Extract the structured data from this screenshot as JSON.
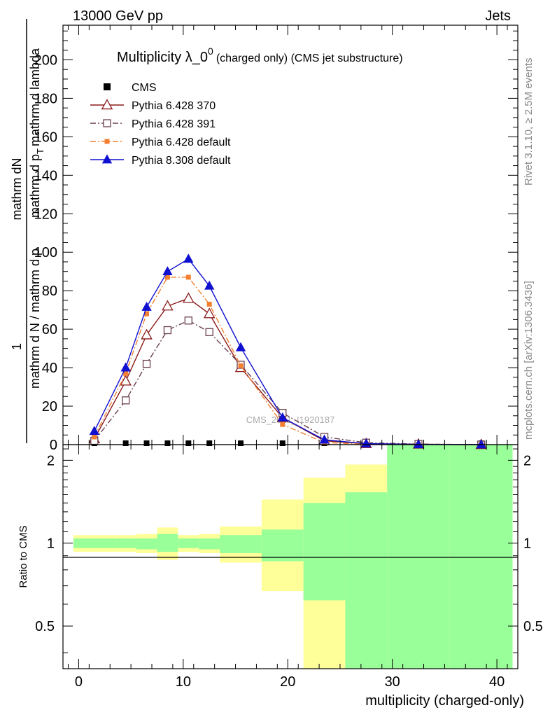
{
  "header": {
    "energy": "13000 GeV pp",
    "process": "Jets"
  },
  "side_labels": {
    "rivet": "Rivet 3.1.10, ≥ 2.5M events",
    "mcplots": "mcplots.cern.ch [arXiv:1306.3436]"
  },
  "watermark": "CMS_2021_I1920187",
  "chart_data": {
    "type": "line",
    "title": "Multiplicity λ_0",
    "title_superscript": "0",
    "subtitle": "(charged only) (CMS jet substructure)",
    "xlabel": "multiplicity (charged-only)",
    "ylabel_top": "1",
    "ylabel_parts": [
      "mathrm d N / mathrm d p",
      "mathrm d p",
      "T",
      "mathrm d lambda",
      "mathrm dN"
    ],
    "ylabel_ratio": "Ratio to CMS",
    "xlim": [
      -1.5,
      42
    ],
    "ylim": [
      0,
      218
    ],
    "ratio_ylim": [
      0.35,
      2.28
    ],
    "x_ticks": [
      0,
      10,
      20,
      30,
      40
    ],
    "y_ticks": [
      0,
      20,
      40,
      60,
      80,
      100,
      120,
      140,
      160,
      180,
      200
    ],
    "ratio_ticks": [
      0.5,
      1,
      2
    ],
    "bins": [
      {
        "lo": -0.5,
        "hi": 3.5
      },
      {
        "lo": 3.5,
        "hi": 5.5
      },
      {
        "lo": 5.5,
        "hi": 7.5
      },
      {
        "lo": 7.5,
        "hi": 9.5
      },
      {
        "lo": 9.5,
        "hi": 11.5
      },
      {
        "lo": 11.5,
        "hi": 13.5
      },
      {
        "lo": 13.5,
        "hi": 17.5
      },
      {
        "lo": 17.5,
        "hi": 21.5
      },
      {
        "lo": 21.5,
        "hi": 25.5
      },
      {
        "lo": 25.5,
        "hi": 29.5
      },
      {
        "lo": 29.5,
        "hi": 35.5
      },
      {
        "lo": 35.5,
        "hi": 41.5
      }
    ],
    "x": [
      1.5,
      4.5,
      6.5,
      8.5,
      10.5,
      12.5,
      15.5,
      19.5,
      23.5,
      27.5,
      32.5,
      38.5
    ],
    "series": [
      {
        "name": "CMS",
        "color": "#000000",
        "marker": "square-filled",
        "dash": "none",
        "values": [
          0.5,
          0.5,
          0.5,
          0.5,
          0.5,
          0.5,
          0.4,
          0.4,
          0.3,
          0.2,
          0.2,
          0.2
        ]
      },
      {
        "name": "Pythia 6.428 370",
        "color": "#8b1a1a",
        "marker": "triangle-open",
        "dash": "solid",
        "values": [
          3,
          33,
          57,
          72,
          76,
          68,
          40,
          14,
          2,
          0.5,
          0.2,
          0
        ]
      },
      {
        "name": "Pythia 6.428 391",
        "color": "#6b4050",
        "marker": "square-open",
        "dash": "dashdot",
        "values": [
          2,
          23,
          42,
          59.5,
          64.5,
          58.5,
          41.5,
          16.5,
          4,
          1,
          0.3,
          0
        ]
      },
      {
        "name": "Pythia 6.428 default",
        "color": "#f28030",
        "marker": "square-filled",
        "dash": "dashdot",
        "values": [
          4,
          37,
          68,
          87,
          87,
          73,
          41,
          10.5,
          1,
          0.3,
          0.1,
          0
        ]
      },
      {
        "name": "Pythia 8.308 default",
        "color": "#1010d0",
        "marker": "triangle-filled",
        "dash": "solid",
        "values": [
          7,
          40,
          71.5,
          90,
          96.5,
          82.5,
          50.5,
          14,
          2.5,
          0.5,
          0.1,
          0
        ]
      }
    ],
    "ratio_bands": {
      "colors": {
        "stat": "#99ff99",
        "total": "#ffff99"
      },
      "stat": [
        [
          0.96,
          1.04
        ],
        [
          0.96,
          1.04
        ],
        [
          0.95,
          1.04
        ],
        [
          0.93,
          1.08
        ],
        [
          0.96,
          1.04
        ],
        [
          0.95,
          1.04
        ],
        [
          0.92,
          1.07
        ],
        [
          0.86,
          1.12
        ],
        [
          0.62,
          1.4
        ],
        [
          0.35,
          1.53
        ],
        [
          0.35,
          2.28
        ],
        [
          0.35,
          2.28
        ]
      ],
      "total": [
        [
          0.93,
          1.07
        ],
        [
          0.93,
          1.07
        ],
        [
          0.92,
          1.08
        ],
        [
          0.87,
          1.14
        ],
        [
          0.93,
          1.07
        ],
        [
          0.92,
          1.08
        ],
        [
          0.85,
          1.15
        ],
        [
          0.67,
          1.44
        ],
        [
          0.35,
          1.73
        ],
        [
          0.56,
          1.93
        ],
        [
          0.35,
          2.28
        ],
        [
          0.35,
          2.28
        ]
      ]
    }
  }
}
